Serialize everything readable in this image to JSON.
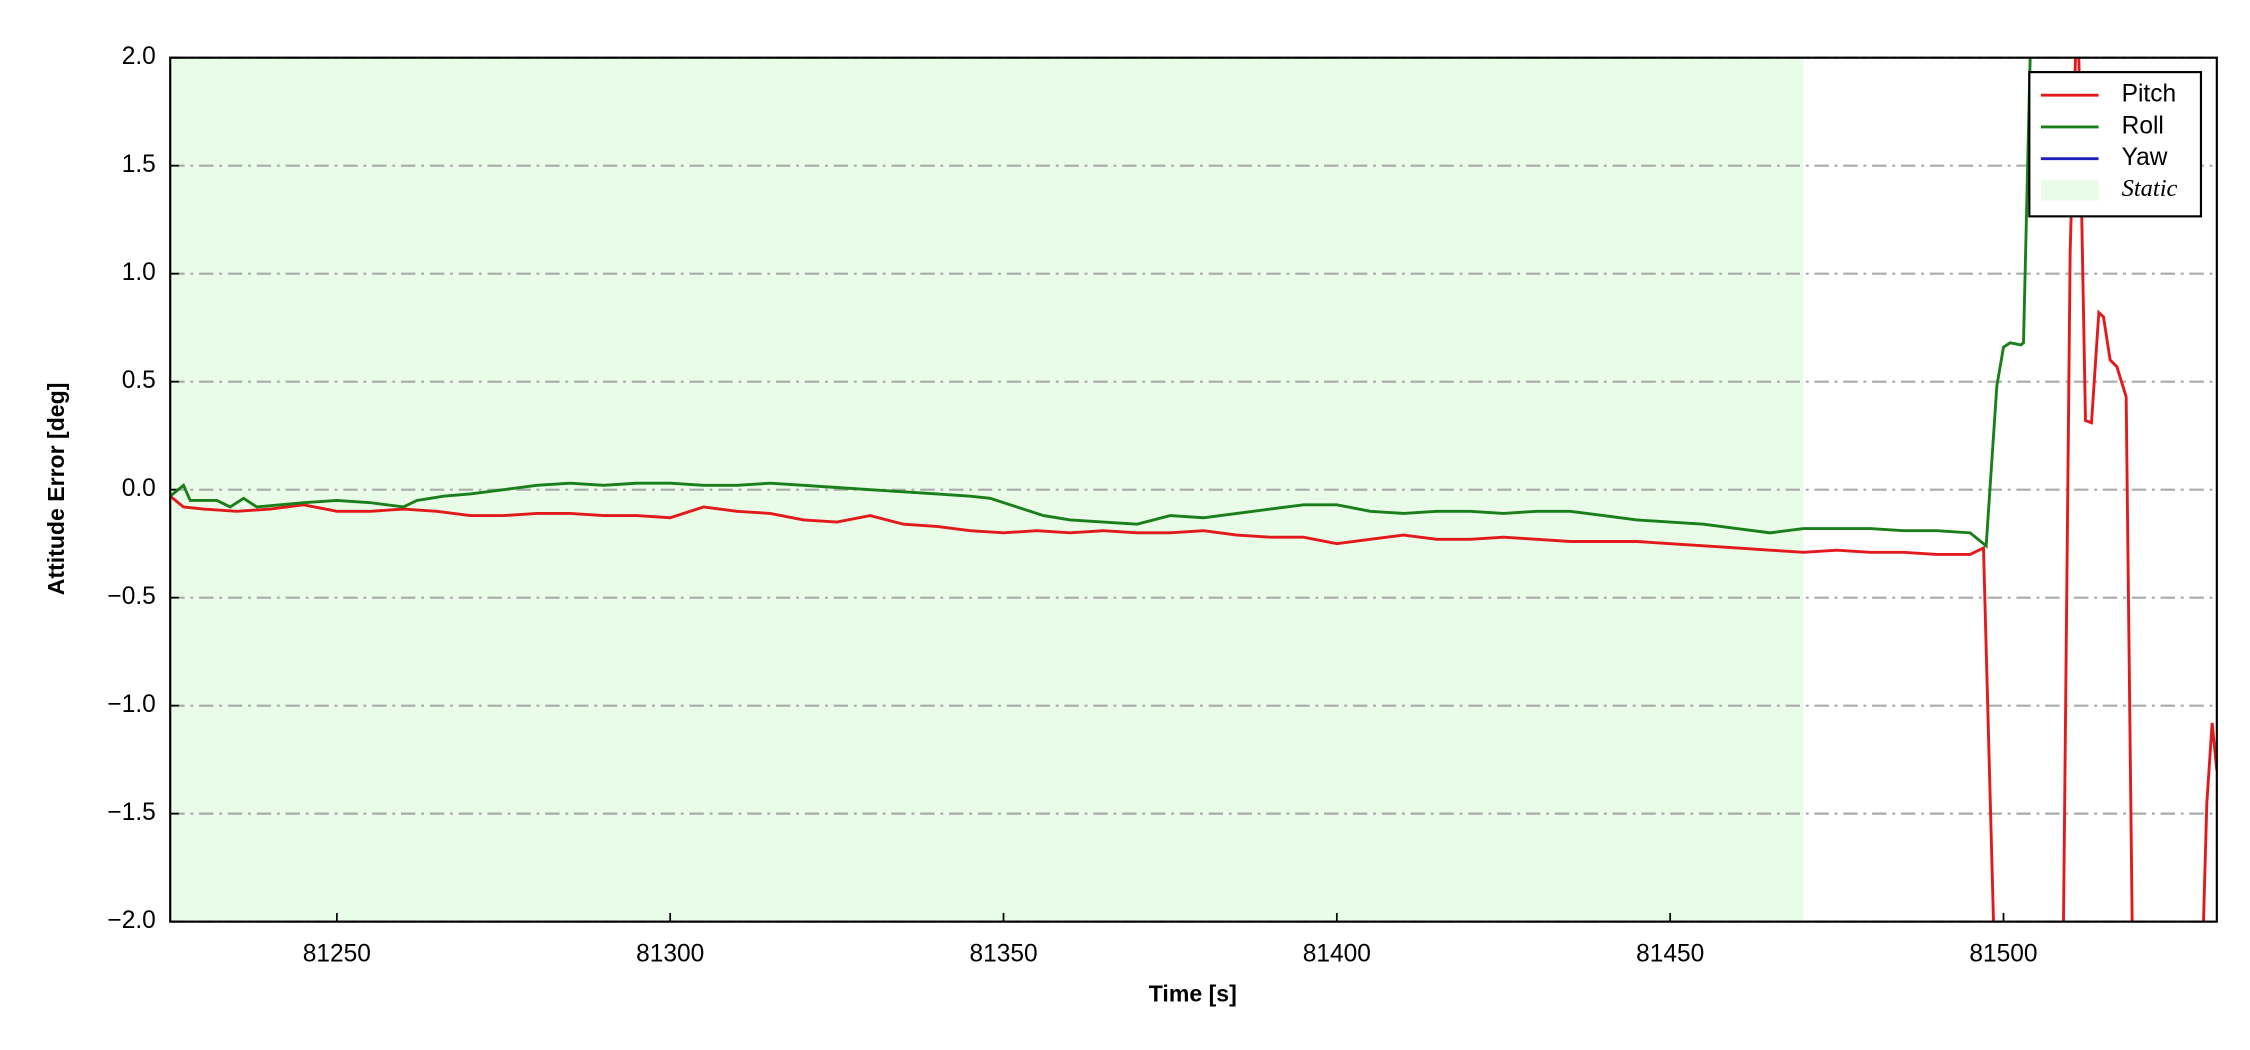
{
  "chart_data": {
    "type": "line",
    "xlabel": "Time [s]",
    "ylabel": "Attitude Error [deg]",
    "xlim": [
      81225,
      81532
    ],
    "ylim": [
      -2,
      2
    ],
    "xticks": [
      81250,
      81300,
      81350,
      81400,
      81450,
      81500
    ],
    "yticks": [
      {
        "value": -2,
        "label": "−2.0"
      },
      {
        "value": -1.5,
        "label": "−1.5"
      },
      {
        "value": -1,
        "label": "−1.0"
      },
      {
        "value": -0.5,
        "label": "−0.5"
      },
      {
        "value": 0,
        "label": "0.0"
      },
      0.5,
      {
        "value": 1,
        "label": "1.0"
      },
      1.5,
      {
        "value": 2,
        "label": "2.0"
      }
    ],
    "grid": "y",
    "legend": "upper right",
    "spans": [
      {
        "name": "Static",
        "color": "#e8fce8",
        "x": [
          81225,
          81470
        ]
      }
    ],
    "series": [
      {
        "name": "Pitch",
        "color": "#e31a1c",
        "x": [
          81225,
          81227,
          81230,
          81235,
          81240,
          81245,
          81250,
          81255,
          81260,
          81265,
          81270,
          81275,
          81280,
          81285,
          81290,
          81295,
          81300,
          81305,
          81310,
          81315,
          81320,
          81325,
          81330,
          81335,
          81340,
          81345,
          81350,
          81355,
          81360,
          81365,
          81370,
          81375,
          81380,
          81385,
          81390,
          81395,
          81400,
          81405,
          81410,
          81415,
          81420,
          81425,
          81430,
          81435,
          81440,
          81445,
          81450,
          81455,
          81460,
          81465,
          81470,
          81475,
          81480,
          81485,
          81490,
          81495,
          81497,
          81498.5,
          81503,
          81509,
          81510,
          81510.8,
          81511,
          81511.3,
          81512.3,
          81513.2,
          81514.3,
          81515,
          81516,
          81517,
          81518.4,
          81519.3,
          81525,
          81530,
          81530.5,
          81531.3,
          81532
        ],
        "values": [
          -0.03,
          -0.08,
          -0.09,
          -0.1,
          -0.09,
          -0.07,
          -0.1,
          -0.1,
          -0.09,
          -0.1,
          -0.12,
          -0.12,
          -0.11,
          -0.11,
          -0.12,
          -0.12,
          -0.13,
          -0.08,
          -0.1,
          -0.11,
          -0.14,
          -0.15,
          -0.12,
          -0.16,
          -0.17,
          -0.19,
          -0.2,
          -0.19,
          -0.2,
          -0.19,
          -0.2,
          -0.2,
          -0.19,
          -0.21,
          -0.22,
          -0.22,
          -0.25,
          -0.23,
          -0.21,
          -0.23,
          -0.23,
          -0.22,
          -0.23,
          -0.24,
          -0.24,
          -0.24,
          -0.25,
          -0.26,
          -0.27,
          -0.28,
          -0.29,
          -0.28,
          -0.29,
          -0.29,
          -0.3,
          -0.3,
          -0.27,
          -2,
          null,
          -2,
          1.1,
          2,
          null,
          2,
          0.32,
          0.31,
          0.82,
          0.8,
          0.6,
          0.57,
          0.43,
          -2,
          null,
          -2,
          -1.45,
          -1.08,
          -1.3
        ]
      },
      {
        "name": "Roll",
        "color": "#1a7f1a",
        "x": [
          81225,
          81227,
          81228,
          81232,
          81234,
          81236,
          81238,
          81245,
          81250,
          81255,
          81260,
          81262,
          81266,
          81270,
          81275,
          81280,
          81285,
          81290,
          81295,
          81300,
          81305,
          81310,
          81315,
          81320,
          81325,
          81330,
          81335,
          81340,
          81345,
          81348,
          81352,
          81356,
          81360,
          81365,
          81370,
          81375,
          81380,
          81385,
          81390,
          81395,
          81400,
          81405,
          81410,
          81415,
          81420,
          81425,
          81430,
          81435,
          81440,
          81445,
          81450,
          81455,
          81460,
          81465,
          81470,
          81475,
          81480,
          81485,
          81490,
          81495,
          81497.4,
          81499,
          81500,
          81501,
          81502.6,
          81503,
          81504
        ],
        "values": [
          -0.03,
          0.02,
          -0.05,
          -0.05,
          -0.08,
          -0.04,
          -0.08,
          -0.06,
          -0.05,
          -0.06,
          -0.08,
          -0.05,
          -0.03,
          -0.02,
          0,
          0.02,
          0.03,
          0.02,
          0.03,
          0.03,
          0.02,
          0.02,
          0.03,
          0.02,
          0.01,
          0,
          -0.01,
          -0.02,
          -0.03,
          -0.04,
          -0.08,
          -0.12,
          -0.14,
          -0.15,
          -0.16,
          -0.12,
          -0.13,
          -0.11,
          -0.09,
          -0.07,
          -0.07,
          -0.1,
          -0.11,
          -0.1,
          -0.1,
          -0.11,
          -0.1,
          -0.1,
          -0.12,
          -0.14,
          -0.15,
          -0.16,
          -0.18,
          -0.2,
          -0.18,
          -0.18,
          -0.18,
          -0.19,
          -0.19,
          -0.2,
          -0.26,
          0.48,
          0.66,
          0.68,
          0.67,
          0.68,
          2
        ]
      },
      {
        "name": "Yaw",
        "color": "#1f1fbf"
      }
    ]
  }
}
